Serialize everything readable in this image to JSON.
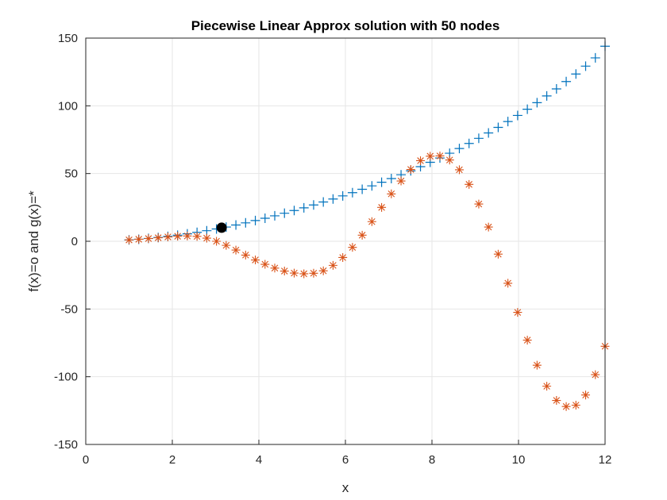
{
  "chart_data": {
    "type": "scatter",
    "title": "Piecewise Linear Approx solution with 50 nodes",
    "xlabel": "x",
    "ylabel": "f(x)=o and g(x)=*",
    "xlim": [
      0,
      12
    ],
    "ylim": [
      -150,
      150
    ],
    "xticks": [
      0,
      2,
      4,
      6,
      8,
      10,
      12
    ],
    "yticks": [
      -150,
      -100,
      -50,
      0,
      50,
      100,
      150
    ],
    "grid": true,
    "colors": {
      "f": "#0072BD",
      "g": "#D95319",
      "point": "#000000"
    },
    "series": [
      {
        "marker": "plus",
        "x": [
          1.0,
          1.2245,
          1.449,
          1.6735,
          1.898,
          2.1224,
          2.3469,
          2.5714,
          2.7959,
          3.0204,
          3.2449,
          3.4694,
          3.6939,
          3.9184,
          4.1429,
          4.3673,
          4.5918,
          4.8163,
          5.0408,
          5.2653,
          5.4898,
          5.7143,
          5.9388,
          6.1633,
          6.3878,
          6.6122,
          6.8367,
          7.0612,
          7.2857,
          7.5102,
          7.7347,
          7.9592,
          8.1837,
          8.4082,
          8.6327,
          8.8571,
          9.0816,
          9.3061,
          9.5306,
          9.7551,
          9.9796,
          10.2041,
          10.4286,
          10.6531,
          10.8776,
          11.102,
          11.3265,
          11.551,
          11.7755,
          12.0
        ],
        "y": [
          1.0,
          1.5,
          2.1,
          2.8,
          3.6,
          4.5,
          5.5,
          6.6,
          7.8,
          9.1,
          10.5,
          12.0,
          13.6,
          15.3,
          17.0,
          18.8,
          20.7,
          22.7,
          24.7,
          26.8,
          29.0,
          31.2,
          33.5,
          35.9,
          38.4,
          40.9,
          43.6,
          46.3,
          49.1,
          52.0,
          55.1,
          58.3,
          61.5,
          65.0,
          68.5,
          72.2,
          76.0,
          80.0,
          84.1,
          88.4,
          92.9,
          97.5,
          102.3,
          107.3,
          112.5,
          117.9,
          123.5,
          129.3,
          135.4,
          144.0
        ]
      },
      {
        "marker": "asterisk",
        "x": [
          1.0,
          1.2245,
          1.449,
          1.6735,
          1.898,
          2.1224,
          2.3469,
          2.5714,
          2.7959,
          3.0204,
          3.2449,
          3.4694,
          3.6939,
          3.9184,
          4.1429,
          4.3673,
          4.5918,
          4.8163,
          5.0408,
          5.2653,
          5.4898,
          5.7143,
          5.9388,
          6.1633,
          6.3878,
          6.6122,
          6.8367,
          7.0612,
          7.2857,
          7.5102,
          7.7347,
          7.9592,
          8.1837,
          8.4082,
          8.6327,
          8.8571,
          9.0816,
          9.3061,
          9.5306,
          9.7551,
          9.9796,
          10.2041,
          10.4286,
          10.6531,
          10.8776,
          11.102,
          11.3265,
          11.551,
          11.7755,
          12.0
        ],
        "y": [
          1.0,
          1.5,
          2.0,
          2.6,
          3.2,
          3.7,
          3.9,
          3.6,
          2.3,
          0.0,
          -3.0,
          -6.5,
          -10.2,
          -13.8,
          -17.0,
          -19.8,
          -22.0,
          -23.5,
          -24.0,
          -23.6,
          -21.8,
          -17.8,
          -12.0,
          -4.5,
          4.5,
          14.5,
          25.0,
          35.0,
          44.5,
          53.0,
          59.5,
          62.8,
          63.0,
          60.0,
          52.8,
          42.0,
          27.5,
          10.5,
          -9.5,
          -31.0,
          -52.5,
          -73.0,
          -91.5,
          -107.0,
          -117.5,
          -122.0,
          -121.0,
          -113.5,
          -98.5,
          -77.5
        ]
      },
      {
        "marker": "dot",
        "x": [
          3.14
        ],
        "y": [
          10.0
        ]
      }
    ]
  }
}
